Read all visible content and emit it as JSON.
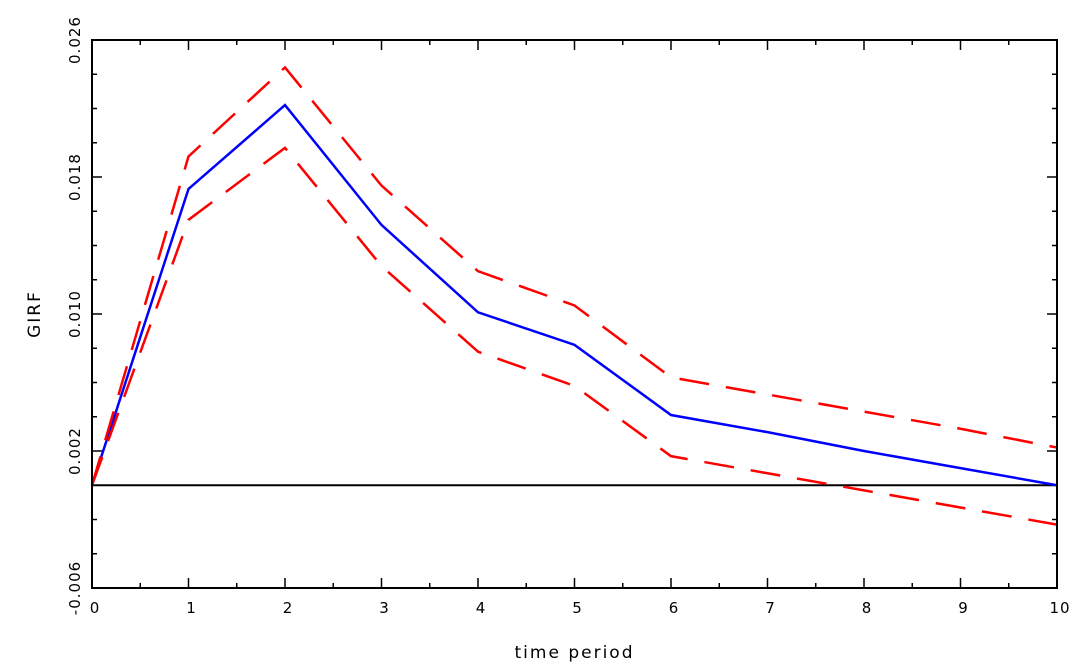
{
  "chart_data": {
    "type": "line",
    "xlabel": "time period",
    "ylabel": "GIRF",
    "xlim": [
      0,
      10
    ],
    "ylim": [
      -0.006,
      0.026
    ],
    "x_ticks": [
      0,
      1,
      2,
      3,
      4,
      5,
      6,
      7,
      8,
      9,
      10
    ],
    "x_tick_labels": [
      "0",
      "1",
      "2",
      "3",
      "4",
      "5",
      "6",
      "7",
      "8",
      "9",
      "10"
    ],
    "y_ticks": [
      -0.006,
      0.002,
      0.01,
      0.018,
      0.026
    ],
    "y_tick_labels": [
      "-0.006",
      "0.002",
      "0.010",
      "0.018",
      "0.026"
    ],
    "x": [
      0,
      1,
      2,
      3,
      4,
      5,
      6,
      7,
      8,
      9,
      10
    ],
    "series": [
      {
        "role": "estimate",
        "color": "#0000ff",
        "style": "solid",
        "values": [
          0.0,
          0.0173,
          0.0222,
          0.0152,
          0.0101,
          0.0082,
          0.0041,
          0.0031,
          0.002,
          0.001,
          0.0
        ]
      },
      {
        "role": "upper-band",
        "color": "#ff0000",
        "style": "dashed",
        "values": [
          0.0,
          0.0192,
          0.0244,
          0.0175,
          0.0125,
          0.0105,
          0.0063,
          0.0053,
          0.0043,
          0.0033,
          0.0022
        ]
      },
      {
        "role": "lower-band",
        "color": "#ff0000",
        "style": "dashed",
        "values": [
          0.0,
          0.0155,
          0.0197,
          0.0128,
          0.0078,
          0.0058,
          0.0017,
          0.0007,
          -0.0003,
          -0.0013,
          -0.0023
        ]
      }
    ],
    "reference_line": {
      "y": 0.0,
      "color": "#000000"
    },
    "grid": false,
    "legend": "none"
  }
}
